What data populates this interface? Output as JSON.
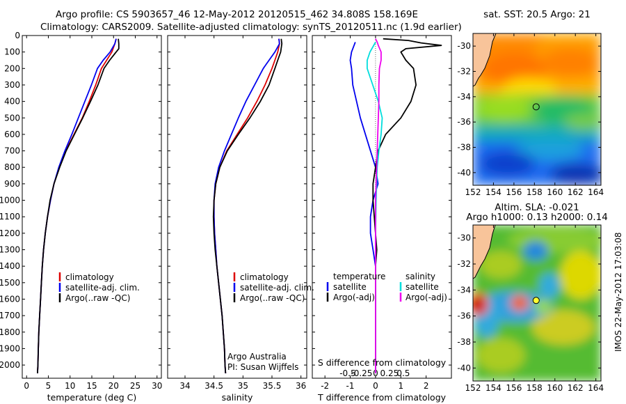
{
  "header": {
    "line1": "Argo profile: CS 5903657_46 12-May-2012 20120515_462 34.808S 158.169E",
    "line2": "Climatology: CARS2009. Satellite-adjusted climatology: synTS_20120511.nc (1.9d earlier)"
  },
  "colors": {
    "climatology": "#dd0000",
    "satellite": "#0000ee",
    "argo": "#000000",
    "argo_adj": "#ee00ee",
    "sal_sat": "#00dddd"
  },
  "chart_data": [
    {
      "id": "temperature",
      "type": "line",
      "xlabel": "temperature (deg C)",
      "ylabel": "",
      "xlim": [
        -1,
        31
      ],
      "ylim": [
        2080,
        0
      ],
      "xticks": [
        0,
        5,
        10,
        15,
        20,
        25,
        30
      ],
      "yticks": [
        0,
        100,
        200,
        300,
        400,
        500,
        600,
        700,
        800,
        900,
        1000,
        1100,
        1200,
        1300,
        1400,
        1500,
        1600,
        1700,
        1800,
        1900,
        2000
      ],
      "legend": [
        "climatology",
        "satellite-adj. clim.",
        "Argo(..raw -QC)"
      ],
      "series": [
        {
          "name": "climatology",
          "color": "#dd0000",
          "points": [
            [
              20.6,
              20
            ],
            [
              20.3,
              50
            ],
            [
              19.6,
              100
            ],
            [
              18.4,
              150
            ],
            [
              17.2,
              200
            ],
            [
              15.9,
              300
            ],
            [
              14.4,
              400
            ],
            [
              12.8,
              500
            ],
            [
              10.9,
              600
            ],
            [
              9.0,
              700
            ],
            [
              7.5,
              800
            ],
            [
              6.3,
              900
            ],
            [
              5.5,
              1000
            ],
            [
              4.8,
              1100
            ],
            [
              4.3,
              1200
            ],
            [
              3.9,
              1300
            ],
            [
              3.6,
              1400
            ],
            [
              3.4,
              1500
            ],
            [
              3.2,
              1600
            ],
            [
              3.0,
              1700
            ],
            [
              2.8,
              1800
            ],
            [
              2.7,
              1900
            ],
            [
              2.6,
              2000
            ],
            [
              2.5,
              2050
            ]
          ]
        },
        {
          "name": "satellite-adj. clim.",
          "color": "#0000ee",
          "points": [
            [
              20.6,
              20
            ],
            [
              20.3,
              50
            ],
            [
              19.2,
              100
            ],
            [
              17.6,
              150
            ],
            [
              16.3,
              200
            ],
            [
              14.9,
              300
            ],
            [
              13.4,
              400
            ],
            [
              11.9,
              500
            ],
            [
              10.4,
              600
            ],
            [
              8.8,
              700
            ],
            [
              7.4,
              800
            ],
            [
              6.3,
              900
            ],
            [
              5.5,
              1000
            ],
            [
              4.8,
              1100
            ],
            [
              4.3,
              1200
            ],
            [
              3.9,
              1300
            ],
            [
              3.6,
              1400
            ],
            [
              3.4,
              1500
            ],
            [
              3.2,
              1600
            ],
            [
              3.0,
              1700
            ],
            [
              2.8,
              1800
            ],
            [
              2.7,
              1900
            ],
            [
              2.6,
              2000
            ],
            [
              2.5,
              2050
            ]
          ]
        },
        {
          "name": "Argo(..raw -QC)",
          "color": "#000000",
          "points": [
            [
              21.1,
              20
            ],
            [
              21.2,
              50
            ],
            [
              21.2,
              80
            ],
            [
              20.3,
              110
            ],
            [
              19.1,
              150
            ],
            [
              17.8,
              200
            ],
            [
              16.4,
              300
            ],
            [
              14.7,
              400
            ],
            [
              12.9,
              500
            ],
            [
              11.0,
              600
            ],
            [
              9.1,
              700
            ],
            [
              7.6,
              800
            ],
            [
              6.3,
              900
            ],
            [
              5.4,
              1000
            ],
            [
              4.8,
              1100
            ],
            [
              4.3,
              1200
            ],
            [
              3.9,
              1300
            ],
            [
              3.6,
              1400
            ],
            [
              3.4,
              1500
            ],
            [
              3.2,
              1600
            ],
            [
              3.0,
              1700
            ],
            [
              2.8,
              1800
            ],
            [
              2.7,
              1900
            ],
            [
              2.6,
              2000
            ],
            [
              2.5,
              2050
            ]
          ]
        }
      ]
    },
    {
      "id": "salinity",
      "type": "line",
      "xlabel": "salinity",
      "ylabel": "",
      "xlim": [
        33.7,
        36.1
      ],
      "ylim": [
        2080,
        0
      ],
      "xticks": [
        34,
        34.5,
        35,
        35.5,
        36
      ],
      "xticklabels": [
        "34",
        "34.5",
        "35",
        "35.5",
        "36"
      ],
      "legend": [
        "climatology",
        "satellite-adj. clim.",
        "Argo(..raw -QC)"
      ],
      "annotations": [
        "Argo Australia",
        "PI: Susan Wijffels"
      ],
      "series": [
        {
          "name": "climatology",
          "color": "#dd0000",
          "points": [
            [
              35.62,
              20
            ],
            [
              35.63,
              50
            ],
            [
              35.6,
              100
            ],
            [
              35.55,
              150
            ],
            [
              35.5,
              200
            ],
            [
              35.38,
              300
            ],
            [
              35.24,
              400
            ],
            [
              35.08,
              500
            ],
            [
              34.9,
              600
            ],
            [
              34.72,
              700
            ],
            [
              34.6,
              800
            ],
            [
              34.53,
              900
            ],
            [
              34.5,
              1000
            ],
            [
              34.5,
              1100
            ],
            [
              34.51,
              1200
            ],
            [
              34.53,
              1300
            ],
            [
              34.55,
              1400
            ],
            [
              34.58,
              1500
            ],
            [
              34.61,
              1600
            ],
            [
              34.64,
              1700
            ],
            [
              34.66,
              1800
            ],
            [
              34.68,
              1900
            ],
            [
              34.69,
              2000
            ],
            [
              34.7,
              2050
            ]
          ]
        },
        {
          "name": "satellite-adj. clim.",
          "color": "#0000ee",
          "points": [
            [
              35.62,
              20
            ],
            [
              35.63,
              50
            ],
            [
              35.55,
              100
            ],
            [
              35.45,
              150
            ],
            [
              35.35,
              200
            ],
            [
              35.2,
              300
            ],
            [
              35.05,
              400
            ],
            [
              34.92,
              500
            ],
            [
              34.8,
              600
            ],
            [
              34.68,
              700
            ],
            [
              34.58,
              800
            ],
            [
              34.52,
              900
            ],
            [
              34.5,
              1000
            ],
            [
              34.5,
              1100
            ],
            [
              34.51,
              1200
            ],
            [
              34.53,
              1300
            ],
            [
              34.55,
              1400
            ],
            [
              34.58,
              1500
            ],
            [
              34.61,
              1600
            ],
            [
              34.64,
              1700
            ],
            [
              34.66,
              1800
            ],
            [
              34.68,
              1900
            ],
            [
              34.69,
              2000
            ],
            [
              34.7,
              2050
            ]
          ]
        },
        {
          "name": "Argo(..raw -QC)",
          "color": "#000000",
          "points": [
            [
              35.66,
              20
            ],
            [
              35.67,
              50
            ],
            [
              35.65,
              100
            ],
            [
              35.6,
              150
            ],
            [
              35.55,
              200
            ],
            [
              35.45,
              300
            ],
            [
              35.3,
              400
            ],
            [
              35.12,
              500
            ],
            [
              34.92,
              600
            ],
            [
              34.73,
              700
            ],
            [
              34.6,
              800
            ],
            [
              34.53,
              900
            ],
            [
              34.5,
              1000
            ],
            [
              34.49,
              1100
            ],
            [
              34.5,
              1200
            ],
            [
              34.52,
              1300
            ],
            [
              34.55,
              1400
            ],
            [
              34.58,
              1500
            ],
            [
              34.61,
              1600
            ],
            [
              34.64,
              1700
            ],
            [
              34.66,
              1800
            ],
            [
              34.68,
              1900
            ],
            [
              34.69,
              2000
            ],
            [
              34.7,
              2050
            ]
          ]
        }
      ]
    },
    {
      "id": "difference",
      "type": "line",
      "xlabel": "T difference from climatology",
      "xlabel2": "S difference from climatology",
      "xlim": [
        -2.5,
        3
      ],
      "ylim": [
        2080,
        0
      ],
      "xticks_T": [
        -2,
        -1,
        0,
        1,
        2
      ],
      "xticks_S": [
        -0.5,
        -0.25,
        0,
        0.25,
        0.5
      ],
      "xticklabels_S": [
        "-0.5",
        "-0.25",
        "0",
        "0.25",
        "0.5"
      ],
      "legend_temperature_title": "temperature",
      "legend_salinity_title": "salinity",
      "legend": [
        "satellite",
        "Argo(-adj)",
        "satellite",
        "Argo(-adj)"
      ],
      "series": [
        {
          "name": "T satellite",
          "color": "#0000ee",
          "points": [
            [
              -0.8,
              40
            ],
            [
              -0.95,
              100
            ],
            [
              -1.0,
              150
            ],
            [
              -0.95,
              200
            ],
            [
              -0.9,
              300
            ],
            [
              -0.6,
              500
            ],
            [
              -0.3,
              650
            ],
            [
              0.0,
              800
            ],
            [
              0.1,
              900
            ],
            [
              -0.1,
              1000
            ],
            [
              -0.2,
              1100
            ],
            [
              -0.2,
              1200
            ],
            [
              -0.1,
              1300
            ],
            [
              0.0,
              1400
            ],
            [
              0.0,
              1500
            ],
            [
              0.0,
              2050
            ]
          ]
        },
        {
          "name": "T Argo(-adj)",
          "color": "#000000",
          "points": [
            [
              0.3,
              20
            ],
            [
              1.3,
              30
            ],
            [
              1.8,
              45
            ],
            [
              2.6,
              60
            ],
            [
              1.2,
              80
            ],
            [
              1.0,
              100
            ],
            [
              1.2,
              150
            ],
            [
              1.5,
              200
            ],
            [
              1.6,
              300
            ],
            [
              1.4,
              400
            ],
            [
              1.0,
              500
            ],
            [
              0.4,
              600
            ],
            [
              0.1,
              700
            ],
            [
              0.0,
              800
            ],
            [
              -0.1,
              900
            ],
            [
              -0.1,
              1000
            ],
            [
              -0.05,
              1100
            ],
            [
              0.0,
              1200
            ],
            [
              0.05,
              1300
            ],
            [
              0.0,
              1400
            ],
            [
              0.0,
              2050
            ]
          ]
        },
        {
          "name": "S satellite",
          "color": "#00dddd",
          "points": [
            [
              0.0,
              40
            ],
            [
              -0.1,
              100
            ],
            [
              -0.15,
              150
            ],
            [
              -0.15,
              200
            ],
            [
              -0.05,
              300
            ],
            [
              0.05,
              400
            ],
            [
              0.12,
              500
            ],
            [
              0.1,
              600
            ],
            [
              0.06,
              700
            ],
            [
              0.03,
              800
            ],
            [
              0.02,
              900
            ],
            [
              0.01,
              1000
            ],
            [
              0.0,
              1200
            ],
            [
              0.0,
              2050
            ]
          ]
        },
        {
          "name": "S Argo(-adj)",
          "color": "#ee00ee",
          "points": [
            [
              0.0,
              20
            ],
            [
              0.03,
              40
            ],
            [
              0.05,
              60
            ],
            [
              0.1,
              100
            ],
            [
              0.1,
              150
            ],
            [
              0.07,
              200
            ],
            [
              0.06,
              300
            ],
            [
              0.06,
              400
            ],
            [
              0.05,
              500
            ],
            [
              0.04,
              600
            ],
            [
              0.03,
              700
            ],
            [
              0.02,
              800
            ],
            [
              0.01,
              900
            ],
            [
              0.0,
              1000
            ],
            [
              0.0,
              2050
            ]
          ]
        }
      ]
    },
    {
      "id": "sst_map",
      "type": "heatmap",
      "title": "sat. SST: 20.5 Argo: 21",
      "xlim": [
        152,
        164.5
      ],
      "ylim": [
        -41,
        -29
      ],
      "xticks": [
        152,
        154,
        156,
        158,
        160,
        162,
        164
      ],
      "yticks": [
        -30,
        -32,
        -34,
        -36,
        -38,
        -40
      ],
      "marker": [
        158.17,
        -34.8
      ]
    },
    {
      "id": "sla_map",
      "type": "heatmap",
      "title": "Altim. SLA: -0.021",
      "subtitle": "Argo h1000: 0.13 h2000: 0.14",
      "xlim": [
        152,
        164.5
      ],
      "ylim": [
        -41,
        -29
      ],
      "xticks": [
        152,
        154,
        156,
        158,
        160,
        162,
        164
      ],
      "yticks": [
        -30,
        -32,
        -34,
        -36,
        -38,
        -40
      ],
      "marker": [
        158.17,
        -34.8
      ]
    }
  ],
  "stamp": "IMOS 22-May-2012 17:03:08"
}
